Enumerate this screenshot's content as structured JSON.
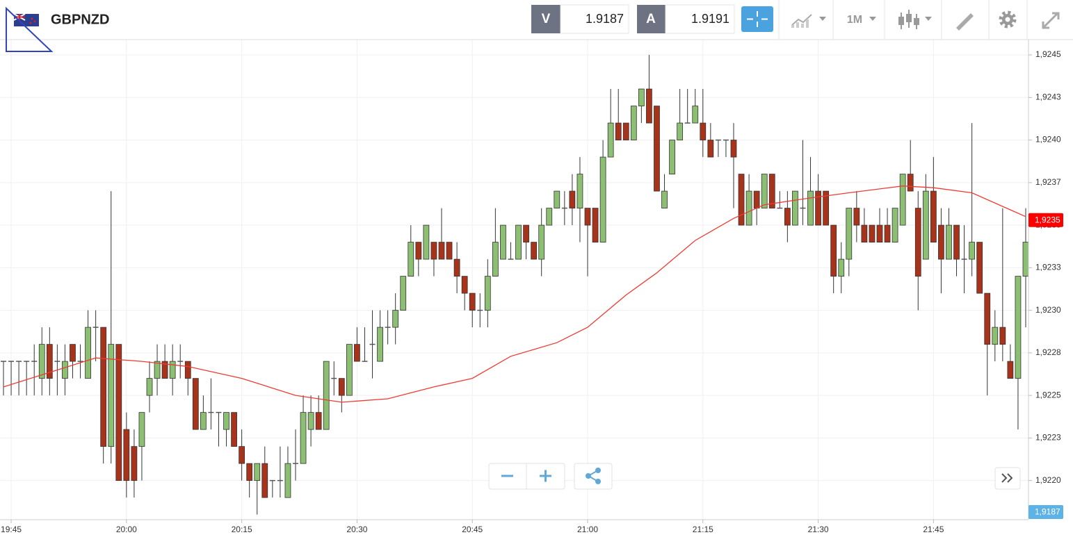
{
  "header": {
    "symbol": "GBPNZD",
    "sell_label": "V",
    "sell_price": 1.9187,
    "buy_label": "A",
    "buy_price": 1.9191,
    "timeframe": "1M"
  },
  "bid_tag": "1,9187",
  "chart_data": {
    "type": "candlestick",
    "x": [
      "19:44",
      "19:45",
      "19:46",
      "19:47",
      "19:48",
      "19:49",
      "19:50",
      "19:51",
      "19:52",
      "19:53",
      "19:54",
      "19:55",
      "19:56",
      "19:57",
      "19:58",
      "19:59",
      "20:00",
      "20:01",
      "20:02",
      "20:03",
      "20:04",
      "20:05",
      "20:06",
      "20:07",
      "20:08",
      "20:09",
      "20:10",
      "20:11",
      "20:12",
      "20:13",
      "20:14",
      "20:15",
      "20:16",
      "20:17",
      "20:18",
      "20:19",
      "20:20",
      "20:21",
      "20:22",
      "20:23",
      "20:24",
      "20:25",
      "20:26",
      "20:27",
      "20:28",
      "20:29",
      "20:30",
      "20:31",
      "20:32",
      "20:33",
      "20:34",
      "20:35",
      "20:36",
      "20:37",
      "20:38",
      "20:39",
      "20:40",
      "20:41",
      "20:42",
      "20:43",
      "20:44",
      "20:45",
      "20:46",
      "20:47",
      "20:48",
      "20:49",
      "20:50",
      "20:51",
      "20:52",
      "20:53",
      "20:54",
      "20:55",
      "20:56",
      "20:57",
      "20:58",
      "20:59",
      "21:00",
      "21:01",
      "21:02",
      "21:03",
      "21:04",
      "21:05",
      "21:06",
      "21:07",
      "21:08",
      "21:09",
      "21:10",
      "21:11",
      "21:12",
      "21:13",
      "21:14",
      "21:15",
      "21:16",
      "21:17",
      "21:18",
      "21:19",
      "21:20",
      "21:21",
      "21:22",
      "21:23",
      "21:24",
      "21:25",
      "21:26",
      "21:27",
      "21:28",
      "21:29",
      "21:30",
      "21:31",
      "21:32",
      "21:33",
      "21:34",
      "21:35",
      "21:36",
      "21:37",
      "21:38",
      "21:39",
      "21:40",
      "21:41",
      "21:42",
      "21:43",
      "21:44",
      "21:45",
      "21:46",
      "21:47",
      "21:48",
      "21:49",
      "21:50",
      "21:51",
      "21:52",
      "21:53",
      "21:54",
      "21:55",
      "21:56",
      "21:57"
    ],
    "open": [
      1.9227,
      1.9227,
      1.9227,
      1.9227,
      1.9227,
      1.9226,
      1.9228,
      1.9227,
      1.9226,
      1.9228,
      1.9227,
      1.9226,
      1.9229,
      1.9229,
      1.9222,
      1.9228,
      1.9223,
      1.9222,
      1.9222,
      1.9225,
      1.9226,
      1.9227,
      1.9226,
      1.9227,
      1.9227,
      1.9226,
      1.9223,
      1.9224,
      1.9224,
      1.9223,
      1.9224,
      1.9222,
      1.9221,
      1.922,
      1.9221,
      1.922,
      1.922,
      1.9219,
      1.9221,
      1.9221,
      1.9223,
      1.9224,
      1.9223,
      1.9226,
      1.9226,
      1.9225,
      1.9228,
      1.9227,
      1.9228,
      1.9227,
      1.9229,
      1.9229,
      1.923,
      1.9232,
      1.9234,
      1.9233,
      1.9234,
      1.9234,
      1.9234,
      1.9233,
      1.9232,
      1.9231,
      1.923,
      1.923,
      1.9232,
      1.9233,
      1.9233,
      1.9233,
      1.9235,
      1.9234,
      1.9233,
      1.9235,
      1.9236,
      1.9236,
      1.9237,
      1.9236,
      1.9236,
      1.9236,
      1.9234,
      1.9239,
      1.9241,
      1.9241,
      1.924,
      1.9242,
      1.9243,
      1.9242,
      1.9236,
      1.9238,
      1.924,
      1.9241,
      1.9241,
      1.9241,
      1.924,
      1.924,
      1.924,
      1.924,
      1.9238,
      1.9235,
      1.9237,
      1.9236,
      1.9238,
      1.9236,
      1.9236,
      1.9235,
      1.9236,
      1.9235,
      1.9237,
      1.9237,
      1.9235,
      1.9232,
      1.9233,
      1.9236,
      1.9235,
      1.9235,
      1.9235,
      1.9235,
      1.9234,
      1.9235,
      1.9238,
      1.9236,
      1.9233,
      1.9237,
      1.9235,
      1.9233,
      1.9235,
      1.9233,
      1.9233,
      1.9234,
      1.9231,
      1.9228,
      1.9229,
      1.9227,
      1.9226,
      1.9232
    ],
    "high": [
      1.9227,
      1.9227,
      1.9227,
      1.9227,
      1.9228,
      1.9229,
      1.9229,
      1.9228,
      1.9228,
      1.9228,
      1.9228,
      1.923,
      1.923,
      1.9229,
      1.9237,
      1.9228,
      1.9224,
      1.9223,
      1.9224,
      1.9227,
      1.9228,
      1.9228,
      1.9228,
      1.9228,
      1.9227,
      1.9226,
      1.9225,
      1.9226,
      1.9224,
      1.9224,
      1.9224,
      1.9223,
      1.9221,
      1.9221,
      1.9222,
      1.922,
      1.9222,
      1.9222,
      1.9223,
      1.9225,
      1.9225,
      1.9225,
      1.9227,
      1.9227,
      1.9226,
      1.9228,
      1.9229,
      1.9229,
      1.923,
      1.923,
      1.923,
      1.9231,
      1.9232,
      1.9235,
      1.9234,
      1.9235,
      1.9234,
      1.9236,
      1.9234,
      1.9234,
      1.9232,
      1.9231,
      1.9231,
      1.9233,
      1.9236,
      1.9235,
      1.9234,
      1.9235,
      1.9235,
      1.9234,
      1.9236,
      1.9236,
      1.9237,
      1.9237,
      1.9238,
      1.9239,
      1.9236,
      1.9236,
      1.924,
      1.9243,
      1.9243,
      1.9241,
      1.9242,
      1.9243,
      1.9245,
      1.9242,
      1.9238,
      1.924,
      1.9243,
      1.9243,
      1.9243,
      1.9243,
      1.9241,
      1.924,
      1.924,
      1.9241,
      1.9238,
      1.9238,
      1.9237,
      1.9238,
      1.9238,
      1.9237,
      1.9237,
      1.9237,
      1.924,
      1.9239,
      1.9238,
      1.9237,
      1.9235,
      1.9234,
      1.9236,
      1.9237,
      1.9236,
      1.9235,
      1.9236,
      1.9236,
      1.9236,
      1.9238,
      1.924,
      1.9237,
      1.9238,
      1.9239,
      1.9236,
      1.9236,
      1.9235,
      1.9235,
      1.9241,
      1.9234,
      1.9231,
      1.923,
      1.9236,
      1.9228,
      1.9232,
      1.9236
    ],
    "low": [
      1.9225,
      1.9225,
      1.9225,
      1.9225,
      1.9225,
      1.9225,
      1.9225,
      1.9225,
      1.9225,
      1.9226,
      1.9226,
      1.9226,
      1.9227,
      1.9221,
      1.9221,
      1.922,
      1.9219,
      1.9219,
      1.922,
      1.9224,
      1.9225,
      1.9226,
      1.9225,
      1.9226,
      1.9225,
      1.9223,
      1.9223,
      1.9223,
      1.9222,
      1.9222,
      1.9222,
      1.922,
      1.9219,
      1.9218,
      1.9219,
      1.9219,
      1.9219,
      1.9219,
      1.922,
      1.9221,
      1.9222,
      1.9223,
      1.9223,
      1.9225,
      1.9224,
      1.9225,
      1.9227,
      1.9227,
      1.9226,
      1.9227,
      1.9228,
      1.9228,
      1.923,
      1.9232,
      1.9232,
      1.9233,
      1.9232,
      1.9233,
      1.9233,
      1.9231,
      1.923,
      1.9229,
      1.9229,
      1.9229,
      1.9232,
      1.9233,
      1.9233,
      1.9233,
      1.9233,
      1.9233,
      1.9232,
      1.9235,
      1.9236,
      1.9235,
      1.9235,
      1.9234,
      1.9232,
      1.9234,
      1.9234,
      1.9239,
      1.924,
      1.924,
      1.924,
      1.9241,
      1.9241,
      1.9237,
      1.9236,
      1.9238,
      1.924,
      1.9241,
      1.9241,
      1.9239,
      1.9239,
      1.9239,
      1.9239,
      1.9236,
      1.9235,
      1.9235,
      1.9235,
      1.9236,
      1.9236,
      1.9236,
      1.9234,
      1.9235,
      1.9235,
      1.9235,
      1.9235,
      1.9235,
      1.9231,
      1.9231,
      1.9232,
      1.9234,
      1.9234,
      1.9234,
      1.9234,
      1.9234,
      1.9234,
      1.9235,
      1.9237,
      1.923,
      1.9233,
      1.9234,
      1.9231,
      1.9233,
      1.9232,
      1.9231,
      1.9232,
      1.9231,
      1.9225,
      1.9227,
      1.9227,
      1.9226,
      1.9223,
      1.9229
    ],
    "close": [
      1.9227,
      1.9227,
      1.9227,
      1.9227,
      1.9227,
      1.9228,
      1.9226,
      1.9227,
      1.9227,
      1.9227,
      1.9227,
      1.9229,
      1.9229,
      1.9222,
      1.9228,
      1.922,
      1.922,
      1.922,
      1.9224,
      1.9226,
      1.9227,
      1.9226,
      1.9227,
      1.9227,
      1.9226,
      1.9223,
      1.9224,
      1.9224,
      1.9224,
      1.9224,
      1.9222,
      1.9221,
      1.922,
      1.9221,
      1.9219,
      1.922,
      1.922,
      1.9221,
      1.9221,
      1.9224,
      1.9224,
      1.9223,
      1.9227,
      1.9226,
      1.9225,
      1.9228,
      1.9227,
      1.9227,
      1.9228,
      1.9229,
      1.9229,
      1.923,
      1.9232,
      1.9234,
      1.9233,
      1.9235,
      1.9233,
      1.9233,
      1.9233,
      1.9232,
      1.9231,
      1.923,
      1.923,
      1.9232,
      1.9234,
      1.9235,
      1.9233,
      1.9235,
      1.9234,
      1.9233,
      1.9235,
      1.9236,
      1.9237,
      1.9236,
      1.9236,
      1.9238,
      1.9235,
      1.9234,
      1.9239,
      1.9241,
      1.924,
      1.924,
      1.9242,
      1.9243,
      1.9241,
      1.9237,
      1.9237,
      1.924,
      1.9241,
      1.9241,
      1.9242,
      1.924,
      1.9239,
      1.924,
      1.924,
      1.9239,
      1.9235,
      1.9237,
      1.9236,
      1.9238,
      1.9236,
      1.9236,
      1.9235,
      1.9237,
      1.9236,
      1.9237,
      1.9235,
      1.9235,
      1.9232,
      1.9233,
      1.9236,
      1.9235,
      1.9234,
      1.9234,
      1.9234,
      1.9234,
      1.9236,
      1.9238,
      1.9237,
      1.9232,
      1.9237,
      1.9234,
      1.9233,
      1.9235,
      1.9233,
      1.9233,
      1.9234,
      1.9231,
      1.9228,
      1.9229,
      1.9228,
      1.9226,
      1.9232,
      1.9234
    ],
    "up_color": "#8dbf72",
    "down_color": "#a8331b",
    "doji_color": "#555555",
    "ma": {
      "color": "#ee3b32",
      "x": [
        "19:44",
        "19:56",
        "20:02",
        "20:08",
        "20:15",
        "20:22",
        "20:28",
        "20:34",
        "20:40",
        "20:45",
        "20:50",
        "20:56",
        "21:00",
        "21:05",
        "21:09",
        "21:14",
        "21:19",
        "21:23",
        "21:29",
        "21:34",
        "21:41",
        "21:45",
        "21:50",
        "21:55",
        "21:57"
      ],
      "values": [
        1.92255,
        1.92272,
        1.9227,
        1.92267,
        1.9226,
        1.9225,
        1.92246,
        1.92248,
        1.92255,
        1.9226,
        1.92273,
        1.92281,
        1.9229,
        1.92309,
        1.92322,
        1.92341,
        1.92354,
        1.92362,
        1.92366,
        1.92369,
        1.92373,
        1.92372,
        1.92369,
        1.92359,
        1.92355
      ]
    },
    "current_price": {
      "value": 1.92353,
      "label": "1,9235"
    },
    "xlim": [
      "19:44",
      "21:57"
    ],
    "xticks": [
      "19:45",
      "20:00",
      "20:15",
      "20:30",
      "20:45",
      "21:00",
      "21:15",
      "21:30",
      "21:45"
    ],
    "ylim": [
      1.92177,
      1.92459
    ],
    "yticks": [
      {
        "value": 1.9245,
        "label": "1,9245"
      },
      {
        "value": 1.92425,
        "label": "1,9243"
      },
      {
        "value": 1.924,
        "label": "1,9240"
      },
      {
        "value": 1.92375,
        "label": "1,9237"
      },
      {
        "value": 1.9235,
        "label": "1,9235"
      },
      {
        "value": 1.92325,
        "label": "1,9233"
      },
      {
        "value": 1.923,
        "label": "1,9230"
      },
      {
        "value": 1.92275,
        "label": "1,9228"
      },
      {
        "value": 1.9225,
        "label": "1,9225"
      },
      {
        "value": 1.92225,
        "label": "1,9223"
      },
      {
        "value": 1.922,
        "label": "1,9220"
      }
    ],
    "grid": true
  }
}
